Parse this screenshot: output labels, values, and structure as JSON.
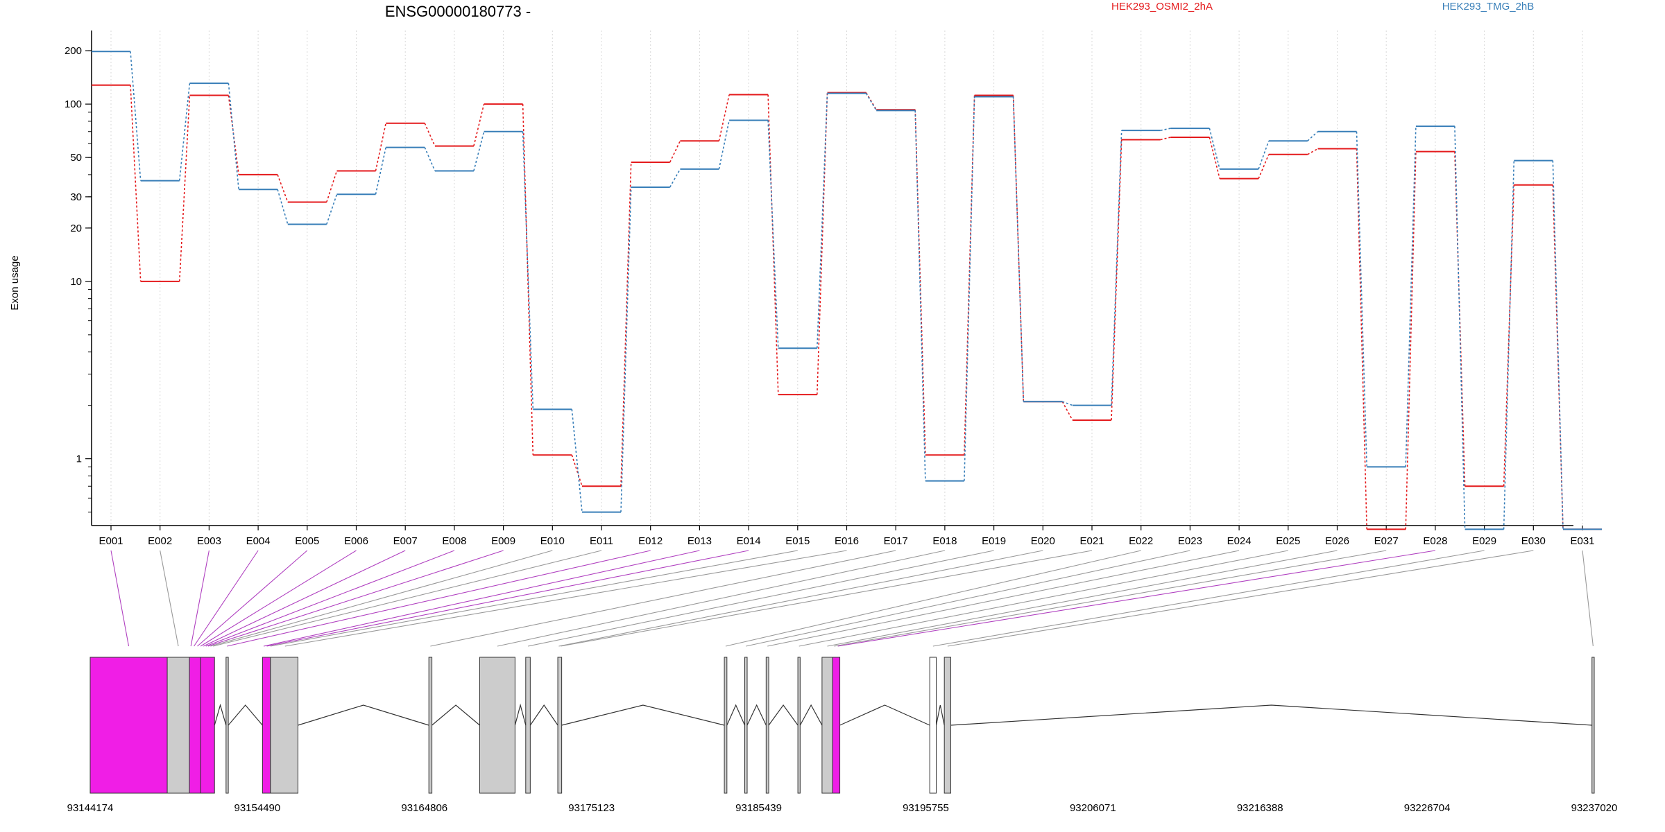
{
  "title": "ENSG00000180773 -",
  "colors": {
    "condition_a": "#e41a1c",
    "condition_b": "#377eb8",
    "highlight": "#f01ee6",
    "exon_fill": "#cccccc",
    "connector_highlight": "#b040c0",
    "connector_plain": "#999999"
  },
  "chart_data": {
    "type": "line",
    "ylabel": "Exon usage",
    "yscale": "log",
    "ylim": [
      0.42,
      260
    ],
    "yticks": [
      1,
      10,
      20,
      30,
      50,
      100,
      200
    ],
    "grid": "vertical dotted lines at exons",
    "legend_position": "top-right",
    "categories": [
      "E001",
      "E002",
      "E003",
      "E004",
      "E005",
      "E006",
      "E007",
      "E008",
      "E009",
      "E010",
      "E011",
      "E012",
      "E013",
      "E014",
      "E015",
      "E016",
      "E017",
      "E018",
      "E019",
      "E020",
      "E021",
      "E022",
      "E023",
      "E024",
      "E025",
      "E026",
      "E027",
      "E028",
      "E029",
      "E030",
      "E031"
    ],
    "series": [
      {
        "name": "HEK293_OSMI2_2hA",
        "color": "#e41a1c",
        "values": [
          128,
          10,
          112,
          40,
          28,
          42,
          78,
          58,
          100,
          1.05,
          0.7,
          47,
          62,
          113,
          2.3,
          116,
          93,
          1.05,
          112,
          2.1,
          1.65,
          63,
          65,
          38,
          52,
          56,
          0.4,
          54,
          0.7,
          35,
          0.4
        ]
      },
      {
        "name": "HEK293_TMG_2hB",
        "color": "#377eb8",
        "values": [
          198,
          37,
          131,
          33,
          21,
          31,
          57,
          42,
          70,
          1.9,
          0.5,
          34,
          43,
          81,
          4.2,
          115,
          92,
          0.75,
          110,
          2.1,
          2.0,
          71,
          73,
          43,
          62,
          70,
          0.9,
          75,
          0.4,
          48,
          0.4
        ]
      }
    ],
    "genomic_axis": {
      "start": 93144174,
      "end": 93237020,
      "tick_labels": [
        "93144174",
        "93154490",
        "93164806",
        "93175123",
        "93185439",
        "93195755",
        "93206071",
        "93216388",
        "93226704",
        "93237020"
      ],
      "highlighted_exons": [
        "E001",
        "E003",
        "E004",
        "E005",
        "E006",
        "E007",
        "E008",
        "E009",
        "E012",
        "E013",
        "E014",
        "E028"
      ]
    }
  }
}
